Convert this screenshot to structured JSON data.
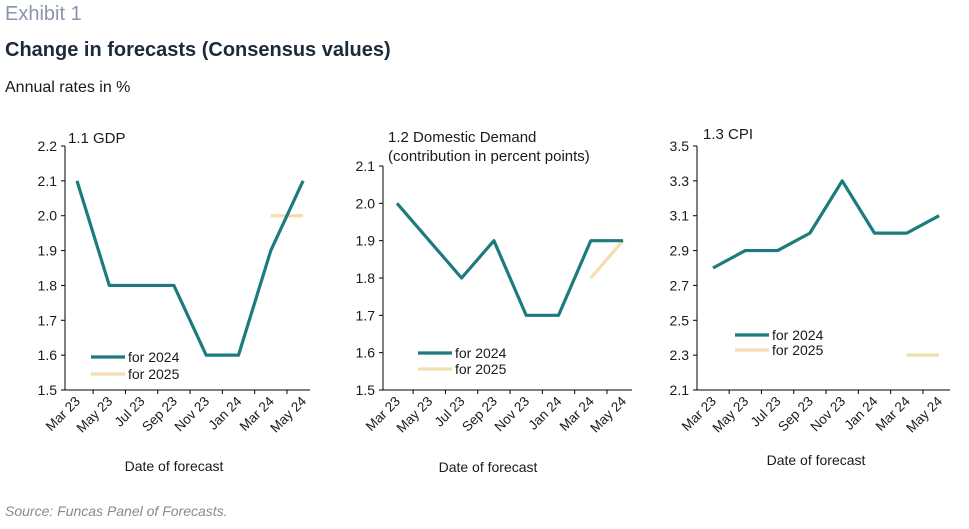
{
  "exhibit_label": "Exhibit 1",
  "title": "Change in forecasts (Consensus values)",
  "subtitle": "Annual rates in %",
  "source": "Source: Funcas Panel of Forecasts.",
  "colors": {
    "series_2024": "#1e7b7d",
    "series_2025": "#f2deb0",
    "axis": "#000000"
  },
  "chart_data": [
    {
      "type": "line",
      "title": "1.1 GDP",
      "xlabel": "Date of forecast",
      "ylabel": "",
      "categories": [
        "Mar 23",
        "May 23",
        "Jul 23",
        "Sep 23",
        "Nov 23",
        "Jan 24",
        "Mar 24",
        "May 24"
      ],
      "ylim": [
        1.5,
        2.2
      ],
      "yticks": [
        "1.5",
        "1.6",
        "1.7",
        "1.8",
        "1.9",
        "2.0",
        "2.1",
        "2.2"
      ],
      "series": [
        {
          "name": "for 2024",
          "values": [
            2.1,
            1.8,
            1.8,
            1.8,
            1.6,
            1.6,
            1.9,
            2.1
          ]
        },
        {
          "name": "for 2025",
          "values": [
            null,
            null,
            null,
            null,
            null,
            null,
            2.0,
            2.0
          ]
        }
      ],
      "legend": "bottom-left",
      "grid": false
    },
    {
      "type": "line",
      "title": [
        "1.2 Domestic Demand",
        "(contribution in percent points)"
      ],
      "xlabel": "Date of forecast",
      "ylabel": "",
      "categories": [
        "Mar 23",
        "May 23",
        "Jul 23",
        "Sep 23",
        "Nov 23",
        "Jan 24",
        "Mar 24",
        "May 24"
      ],
      "ylim": [
        1.5,
        2.1
      ],
      "yticks": [
        "1.5",
        "1.6",
        "1.7",
        "1.8",
        "1.9",
        "2.0",
        "2.1"
      ],
      "series": [
        {
          "name": "for 2024",
          "values": [
            2.0,
            1.9,
            1.8,
            1.9,
            1.7,
            1.7,
            1.9,
            1.9
          ]
        },
        {
          "name": "for 2025",
          "values": [
            null,
            null,
            null,
            null,
            null,
            null,
            1.8,
            1.9
          ]
        }
      ],
      "legend": "bottom-left",
      "grid": false
    },
    {
      "type": "line",
      "title": "1.3 CPI",
      "xlabel": "Date of forecast",
      "ylabel": "",
      "categories": [
        "Mar 23",
        "May 23",
        "Jul 23",
        "Sep 23",
        "Nov 23",
        "Jan 24",
        "Mar 24",
        "May 24"
      ],
      "ylim": [
        2.1,
        3.5
      ],
      "yticks": [
        "2.1",
        "2.3",
        "2.5",
        "2.7",
        "2.9",
        "3.1",
        "3.3",
        "3.5"
      ],
      "series": [
        {
          "name": "for 2024",
          "values": [
            2.8,
            2.9,
            2.9,
            3.0,
            3.3,
            3.0,
            3.0,
            3.1
          ]
        },
        {
          "name": "for 2025",
          "values": [
            null,
            null,
            null,
            null,
            null,
            null,
            2.3,
            2.3
          ]
        }
      ],
      "legend": "left",
      "grid": false
    }
  ]
}
